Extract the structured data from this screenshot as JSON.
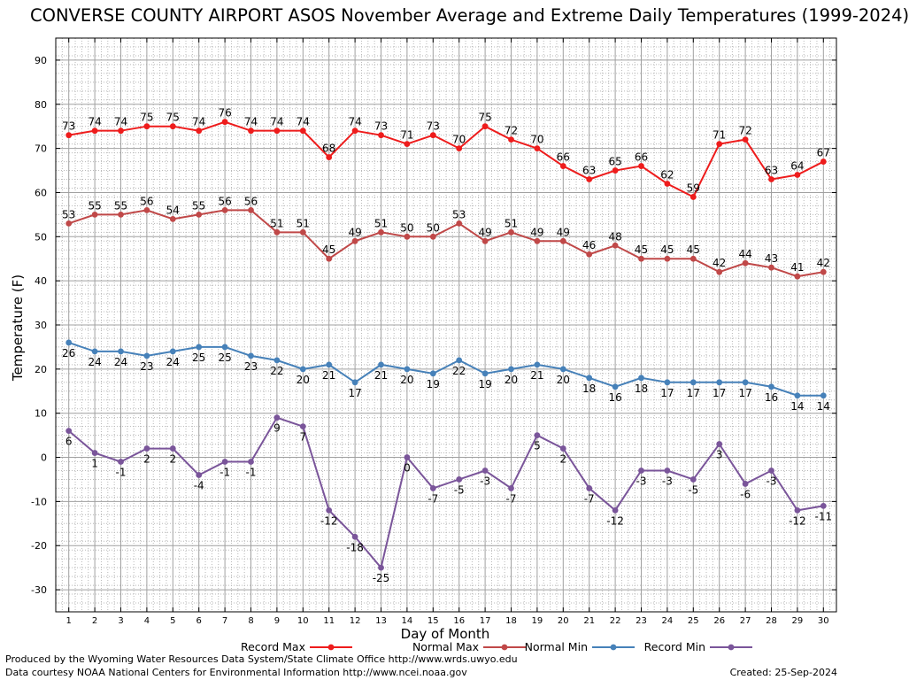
{
  "chart_data": {
    "type": "line",
    "title": "CONVERSE COUNTY AIRPORT ASOS November Average and Extreme Daily Temperatures (1999-2024)",
    "xlabel": "Day of Month",
    "ylabel": "Temperature (F)",
    "xlim": [
      0.5,
      30.5
    ],
    "ylim": [
      -35,
      95
    ],
    "y_ticks": [
      -30,
      -20,
      -10,
      0,
      10,
      20,
      30,
      40,
      50,
      60,
      70,
      80,
      90
    ],
    "x": [
      1,
      2,
      3,
      4,
      5,
      6,
      7,
      8,
      9,
      10,
      11,
      12,
      13,
      14,
      15,
      16,
      17,
      18,
      19,
      20,
      21,
      22,
      23,
      24,
      25,
      26,
      27,
      28,
      29,
      30
    ],
    "grid": true,
    "legend_position": "bottom",
    "series": [
      {
        "name": "Record Max",
        "color": "#ee1c1c",
        "label_position": "above",
        "values": [
          73,
          74,
          74,
          75,
          75,
          74,
          76,
          74,
          74,
          74,
          68,
          74,
          73,
          71,
          73,
          70,
          75,
          72,
          70,
          66,
          63,
          65,
          66,
          62,
          59,
          71,
          72,
          63,
          64,
          67
        ]
      },
      {
        "name": "Normal Max",
        "color": "#c04848",
        "label_position": "above",
        "values": [
          53,
          55,
          55,
          56,
          54,
          55,
          56,
          56,
          51,
          51,
          45,
          49,
          51,
          50,
          50,
          53,
          49,
          51,
          49,
          49,
          46,
          48,
          45,
          45,
          45,
          42,
          44,
          43,
          41,
          42
        ]
      },
      {
        "name": "Normal Min",
        "color": "#4681b9",
        "label_position": "below",
        "values": [
          26,
          24,
          24,
          23,
          24,
          25,
          25,
          23,
          22,
          20,
          21,
          17,
          21,
          20,
          19,
          22,
          19,
          20,
          21,
          20,
          18,
          16,
          18,
          17,
          17,
          17,
          17,
          16,
          14,
          14
        ]
      },
      {
        "name": "Record Min",
        "color": "#7a559a",
        "label_position": "below",
        "values": [
          6,
          1,
          -1,
          2,
          2,
          -4,
          -1,
          -1,
          9,
          7,
          -12,
          -18,
          -25,
          0,
          -7,
          -5,
          -3,
          -7,
          5,
          2,
          -7,
          -12,
          -3,
          -3,
          -5,
          3,
          -6,
          -3,
          -12,
          -11
        ]
      }
    ]
  },
  "footer": {
    "produced_by": "Produced by the Wyoming Water Resources Data System/State Climate Office http://www.wrds.uwyo.edu",
    "data_courtesy": "Data courtesy NOAA National Centers for Environmental Information http://www.ncei.noaa.gov",
    "created": "Created: 25-Sep-2024"
  }
}
